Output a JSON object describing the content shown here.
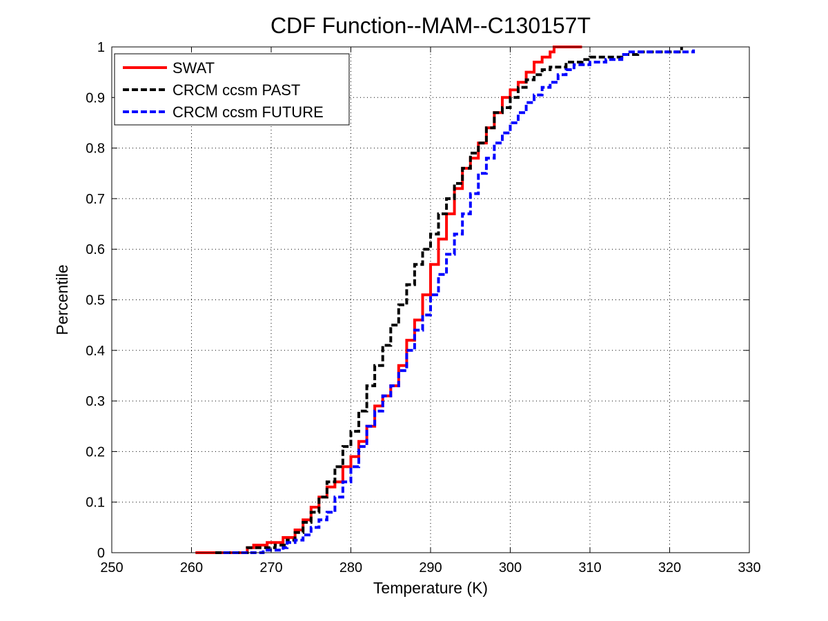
{
  "chart_data": {
    "type": "line",
    "title": "CDF Function--MAM--C130157T",
    "xlabel": "Temperature (K)",
    "ylabel": "Percentile",
    "xlim": [
      250,
      330
    ],
    "ylim": [
      0,
      1
    ],
    "xticks": [
      250,
      260,
      270,
      280,
      290,
      300,
      310,
      320,
      330
    ],
    "yticks": [
      0,
      0.1,
      0.2,
      0.3,
      0.4,
      0.5,
      0.6,
      0.7,
      0.8,
      0.9,
      1
    ],
    "grid": true,
    "legend_position": "top-left",
    "series": [
      {
        "name": "SWAT",
        "color": "#ff0000",
        "style": "solid",
        "step": true,
        "points": [
          [
            260.5,
            0.0
          ],
          [
            267.0,
            0.0
          ],
          [
            267.0,
            0.01
          ],
          [
            267.8,
            0.01
          ],
          [
            267.8,
            0.015
          ],
          [
            269.5,
            0.02
          ],
          [
            271.5,
            0.03
          ],
          [
            273.0,
            0.045
          ],
          [
            274.0,
            0.065
          ],
          [
            275.0,
            0.09
          ],
          [
            276.0,
            0.11
          ],
          [
            277.0,
            0.13
          ],
          [
            278.0,
            0.14
          ],
          [
            279.0,
            0.17
          ],
          [
            280.0,
            0.19
          ],
          [
            281.0,
            0.22
          ],
          [
            282.0,
            0.25
          ],
          [
            283.0,
            0.29
          ],
          [
            284.0,
            0.31
          ],
          [
            285.0,
            0.33
          ],
          [
            286.0,
            0.37
          ],
          [
            287.0,
            0.42
          ],
          [
            288.0,
            0.46
          ],
          [
            289.0,
            0.51
          ],
          [
            290.0,
            0.57
          ],
          [
            291.0,
            0.62
          ],
          [
            292.0,
            0.67
          ],
          [
            293.0,
            0.72
          ],
          [
            294.0,
            0.76
          ],
          [
            295.0,
            0.78
          ],
          [
            296.0,
            0.81
          ],
          [
            297.0,
            0.84
          ],
          [
            298.0,
            0.87
          ],
          [
            299.0,
            0.9
          ],
          [
            300.0,
            0.915
          ],
          [
            301.0,
            0.93
          ],
          [
            302.0,
            0.95
          ],
          [
            303.0,
            0.97
          ],
          [
            304.0,
            0.98
          ],
          [
            305.0,
            0.99
          ],
          [
            305.5,
            1.0
          ],
          [
            309.0,
            1.0
          ]
        ]
      },
      {
        "name": "CRCM ccsm PAST",
        "color": "#000000",
        "style": "dashed",
        "step": true,
        "points": [
          [
            263.0,
            0.0
          ],
          [
            267.0,
            0.0
          ],
          [
            267.0,
            0.01
          ],
          [
            270.5,
            0.015
          ],
          [
            272.0,
            0.025
          ],
          [
            273.0,
            0.04
          ],
          [
            274.0,
            0.06
          ],
          [
            275.0,
            0.08
          ],
          [
            276.0,
            0.11
          ],
          [
            277.0,
            0.14
          ],
          [
            278.0,
            0.17
          ],
          [
            279.0,
            0.21
          ],
          [
            280.0,
            0.24
          ],
          [
            281.0,
            0.28
          ],
          [
            282.0,
            0.33
          ],
          [
            283.0,
            0.37
          ],
          [
            284.0,
            0.41
          ],
          [
            285.0,
            0.45
          ],
          [
            286.0,
            0.49
          ],
          [
            287.0,
            0.53
          ],
          [
            288.0,
            0.57
          ],
          [
            289.0,
            0.6
          ],
          [
            290.0,
            0.63
          ],
          [
            291.0,
            0.67
          ],
          [
            292.0,
            0.7
          ],
          [
            293.0,
            0.73
          ],
          [
            294.0,
            0.76
          ],
          [
            295.0,
            0.79
          ],
          [
            296.0,
            0.81
          ],
          [
            297.0,
            0.84
          ],
          [
            298.0,
            0.87
          ],
          [
            299.0,
            0.88
          ],
          [
            300.0,
            0.9
          ],
          [
            301.0,
            0.92
          ],
          [
            302.0,
            0.935
          ],
          [
            303.0,
            0.945
          ],
          [
            304.0,
            0.955
          ],
          [
            305.0,
            0.96
          ],
          [
            307.0,
            0.97
          ],
          [
            309.0,
            0.975
          ],
          [
            310.0,
            0.98
          ],
          [
            314.0,
            0.985
          ],
          [
            316.0,
            0.99
          ],
          [
            321.0,
            0.99
          ],
          [
            321.5,
            1.0
          ]
        ]
      },
      {
        "name": "CRCM ccsm FUTURE",
        "color": "#0000ff",
        "style": "dashed",
        "step": true,
        "points": [
          [
            264.0,
            0.0
          ],
          [
            269.0,
            0.0
          ],
          [
            269.0,
            0.005
          ],
          [
            271.5,
            0.01
          ],
          [
            272.0,
            0.02
          ],
          [
            273.0,
            0.025
          ],
          [
            274.0,
            0.035
          ],
          [
            275.0,
            0.05
          ],
          [
            276.0,
            0.065
          ],
          [
            277.0,
            0.08
          ],
          [
            278.0,
            0.11
          ],
          [
            279.0,
            0.14
          ],
          [
            280.0,
            0.17
          ],
          [
            281.0,
            0.21
          ],
          [
            282.0,
            0.25
          ],
          [
            283.0,
            0.28
          ],
          [
            284.0,
            0.31
          ],
          [
            285.0,
            0.33
          ],
          [
            286.0,
            0.36
          ],
          [
            287.0,
            0.4
          ],
          [
            288.0,
            0.44
          ],
          [
            289.0,
            0.47
          ],
          [
            290.0,
            0.51
          ],
          [
            291.0,
            0.55
          ],
          [
            292.0,
            0.59
          ],
          [
            293.0,
            0.63
          ],
          [
            294.0,
            0.67
          ],
          [
            295.0,
            0.71
          ],
          [
            296.0,
            0.75
          ],
          [
            297.0,
            0.78
          ],
          [
            298.0,
            0.81
          ],
          [
            299.0,
            0.83
          ],
          [
            300.0,
            0.85
          ],
          [
            301.0,
            0.87
          ],
          [
            302.0,
            0.89
          ],
          [
            303.0,
            0.905
          ],
          [
            304.0,
            0.92
          ],
          [
            305.0,
            0.93
          ],
          [
            306.0,
            0.945
          ],
          [
            307.0,
            0.955
          ],
          [
            308.0,
            0.965
          ],
          [
            310.0,
            0.97
          ],
          [
            312.0,
            0.975
          ],
          [
            314.0,
            0.985
          ],
          [
            315.0,
            0.99
          ],
          [
            322.5,
            0.99
          ],
          [
            323.0,
            0.995
          ]
        ]
      }
    ]
  }
}
